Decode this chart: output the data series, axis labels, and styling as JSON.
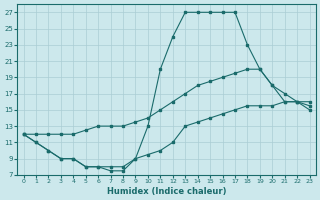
{
  "xlabel": "Humidex (Indice chaleur)",
  "bg_color": "#cce8ec",
  "grid_color": "#aacdd4",
  "line_color": "#1a6b6b",
  "xlim": [
    -0.5,
    23.5
  ],
  "ylim": [
    7,
    28
  ],
  "xticks": [
    0,
    1,
    2,
    3,
    4,
    5,
    6,
    7,
    8,
    9,
    10,
    11,
    12,
    13,
    14,
    15,
    16,
    17,
    18,
    19,
    20,
    21,
    22,
    23
  ],
  "yticks": [
    7,
    9,
    11,
    13,
    15,
    17,
    19,
    21,
    23,
    25,
    27
  ],
  "line1_x": [
    0,
    1,
    2,
    3,
    4,
    5,
    6,
    7,
    8,
    9,
    10,
    11,
    12,
    13,
    14,
    15,
    16,
    17,
    18,
    19,
    20,
    21,
    22,
    23
  ],
  "line1_y": [
    12,
    11,
    10,
    9,
    9,
    8,
    8,
    8,
    8,
    9,
    13,
    20,
    24,
    27,
    27,
    27,
    27,
    27,
    23,
    20,
    18,
    16,
    16,
    15
  ],
  "line2_x": [
    0,
    1,
    2,
    3,
    4,
    5,
    6,
    7,
    8,
    9,
    10,
    11,
    12,
    13,
    14,
    15,
    16,
    17,
    18,
    19,
    20,
    21,
    22,
    23
  ],
  "line2_y": [
    12,
    12,
    12,
    12,
    12,
    12.5,
    13,
    13,
    13,
    13.5,
    14,
    15,
    16,
    17,
    18,
    18.5,
    19,
    19.5,
    20,
    20,
    18,
    17,
    16,
    16
  ],
  "line3_x": [
    0,
    1,
    2,
    3,
    4,
    5,
    6,
    7,
    8,
    9,
    10,
    11,
    12,
    13,
    14,
    15,
    16,
    17,
    18,
    19,
    20,
    21,
    22,
    23
  ],
  "line3_y": [
    12,
    11,
    10,
    9,
    9,
    8,
    8,
    7.5,
    7.5,
    9,
    9.5,
    10,
    11,
    13,
    13.5,
    14,
    14.5,
    15,
    15.5,
    15.5,
    15.5,
    16,
    16,
    15.5
  ]
}
